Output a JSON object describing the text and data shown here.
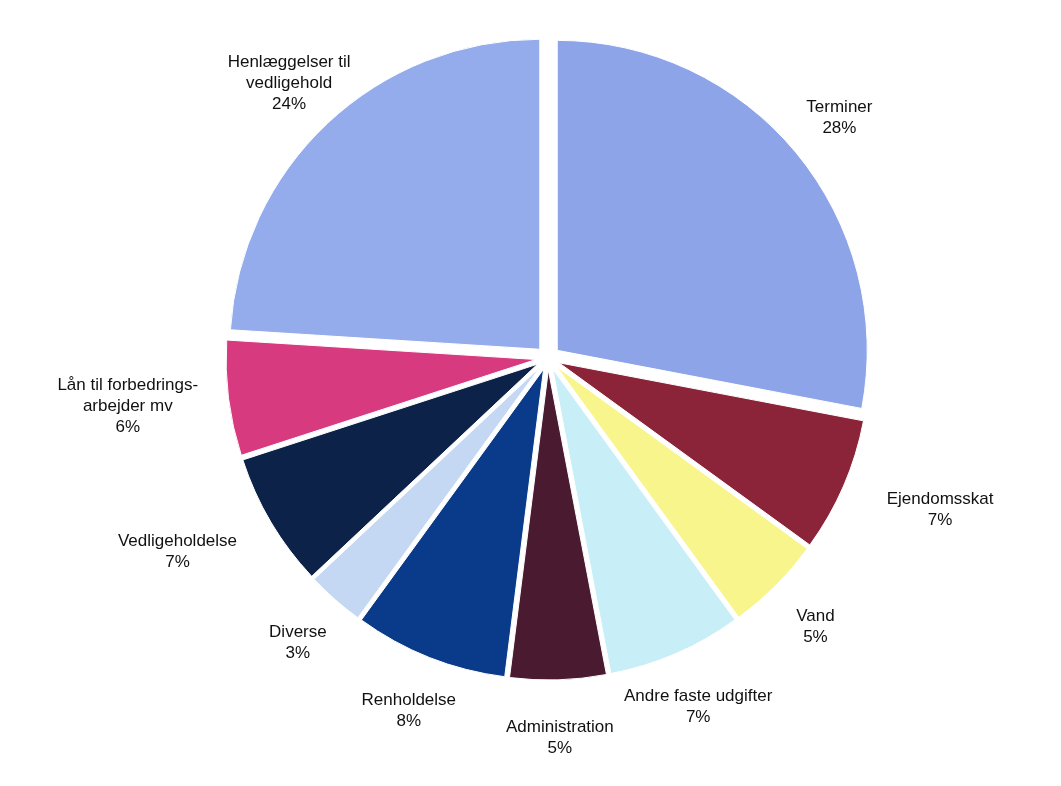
{
  "chart_data": {
    "type": "pie",
    "categories": [
      "Terminer",
      "Ejendomsskat",
      "Vand",
      "Andre faste udgifter",
      "Administration",
      "Renholdelse",
      "Diverse",
      "Vedligeholdelse",
      "Lån til forbedrings-arbejder mv",
      "Henlæggelser til vedligehold"
    ],
    "values": [
      28,
      7,
      5,
      7,
      5,
      8,
      3,
      7,
      6,
      24
    ],
    "colors": [
      "#8da4e8",
      "#8b2438",
      "#f8f58c",
      "#c8eef8",
      "#4a1a30",
      "#0a3a8a",
      "#c4d8f4",
      "#0c2248",
      "#d83a80",
      "#94acec"
    ],
    "value_labels": [
      "28%",
      "7%",
      "5%",
      "7%",
      "5%",
      "8%",
      "3%",
      "7%",
      "6%",
      "24%"
    ]
  }
}
